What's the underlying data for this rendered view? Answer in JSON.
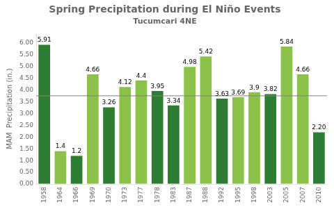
{
  "chart_data": {
    "type": "bar",
    "title": "Spring Precipitation during El Niño Events",
    "subtitle": "Tucumcari 4NE",
    "ylabel": "MAM  Precipitation (in.)",
    "categories": [
      "1958",
      "1964",
      "1966",
      "1969",
      "1970",
      "1973",
      "1977",
      "1978",
      "1983",
      "1987",
      "1988",
      "1992",
      "1995",
      "1998",
      "2003",
      "2005",
      "2007",
      "2010"
    ],
    "values": [
      5.91,
      1.4,
      1.2,
      4.66,
      3.26,
      4.12,
      4.4,
      3.95,
      3.34,
      4.98,
      5.42,
      3.63,
      3.69,
      3.9,
      3.82,
      5.84,
      4.66,
      2.2
    ],
    "value_labels": [
      "5.91",
      "1.4",
      "1.2",
      "4.66",
      "3.26",
      "4.12",
      "4.4",
      "3.95",
      "3.34",
      "4.98",
      "5.42",
      "3.63",
      "3.69",
      "3.9",
      "3.82",
      "5.84",
      "4.66",
      "2.20"
    ],
    "colors": [
      "#2e7d32",
      "#8bc34a",
      "#2e7d32",
      "#8bc34a",
      "#2e7d32",
      "#8bc34a",
      "#8bc34a",
      "#2e7d32",
      "#2e7d32",
      "#8bc34a",
      "#8bc34a",
      "#2e7d32",
      "#8bc34a",
      "#8bc34a",
      "#2e7d32",
      "#8bc34a",
      "#8bc34a",
      "#2e7d32"
    ],
    "data_labels": true,
    "ref_line": 3.75,
    "ylim": [
      0,
      6.4
    ],
    "yticks": [
      {
        "value": 0.0,
        "label": "0.00"
      },
      {
        "value": 0.5,
        "label": "0.50"
      },
      {
        "value": 1.0,
        "label": "1.00"
      },
      {
        "value": 1.5,
        "label": "1.50"
      },
      {
        "value": 2.0,
        "label": "2.00"
      },
      {
        "value": 2.5,
        "label": "2.50"
      },
      {
        "value": 3.0,
        "label": "3.00"
      },
      {
        "value": 3.5,
        "label": "3.50"
      },
      {
        "value": 4.0,
        "label": "4.00"
      },
      {
        "value": 4.5,
        "label": "4.50"
      },
      {
        "value": 5.0,
        "label": "5.00"
      },
      {
        "value": 5.5,
        "label": "5.50"
      },
      {
        "value": 6.0,
        "label": "6.00"
      }
    ],
    "grid": false
  }
}
